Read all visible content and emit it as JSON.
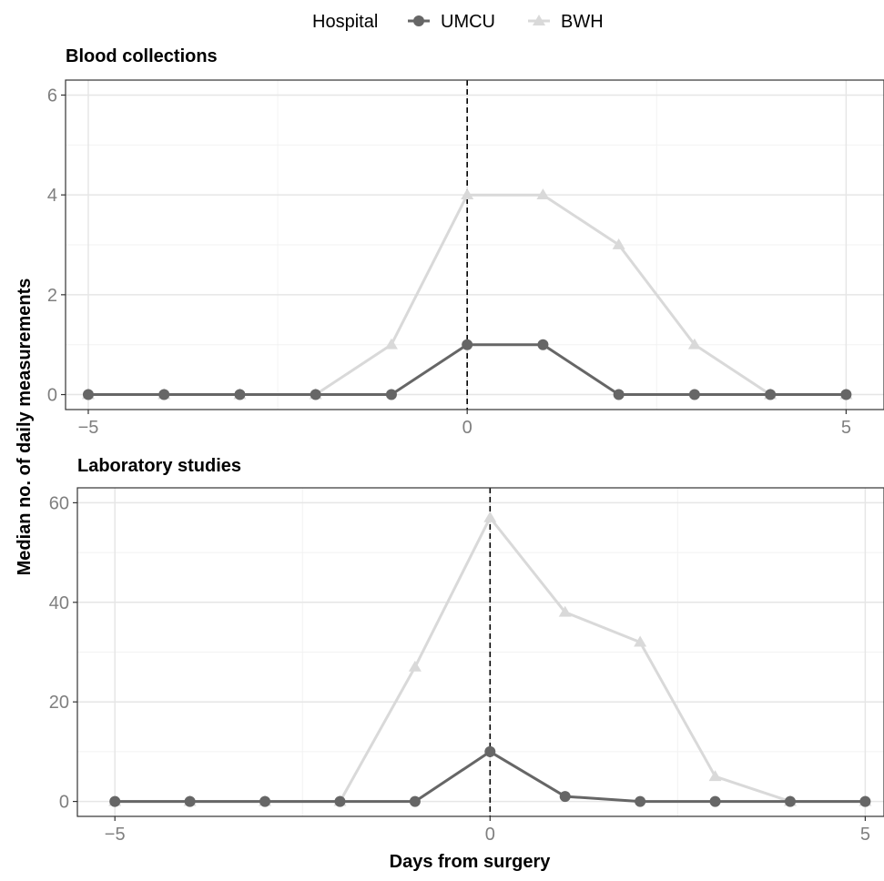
{
  "chart_data": {
    "type": "line",
    "legend": {
      "title": "Hospital",
      "position": "top",
      "entries": [
        "UMCU",
        "BWH"
      ]
    },
    "xlabel": "Days from surgery",
    "ylabel": "Median no. of daily measurements",
    "vline_x": 0,
    "grid": true,
    "colors": {
      "UMCU": "#666666",
      "BWH": "#d9d9d9"
    },
    "panels": [
      {
        "title": "Blood collections",
        "x": [
          -5,
          -4,
          -3,
          -2,
          -1,
          0,
          1,
          2,
          3,
          4,
          5
        ],
        "xlim": [
          -5.3,
          5.5
        ],
        "ylim": [
          -0.3,
          6.3
        ],
        "xticks": [
          -5,
          0,
          5
        ],
        "xtick_labels": [
          "−5",
          "0",
          "5"
        ],
        "yticks": [
          0,
          2,
          4,
          6
        ],
        "ytick_labels": [
          "0",
          "2",
          "4",
          "6"
        ],
        "series": [
          {
            "name": "UMCU",
            "values": [
              0,
              0,
              0,
              0,
              0,
              1,
              1,
              0,
              0,
              0,
              0
            ]
          },
          {
            "name": "BWH",
            "values": [
              0,
              0,
              0,
              0,
              1,
              4,
              4,
              3,
              1,
              0,
              0
            ]
          }
        ]
      },
      {
        "title": "Laboratory studies",
        "x": [
          -5,
          -4,
          -3,
          -2,
          -1,
          0,
          1,
          2,
          3,
          4,
          5
        ],
        "xlim": [
          -5.5,
          5.25
        ],
        "ylim": [
          -3,
          63
        ],
        "xticks": [
          -5,
          0,
          5
        ],
        "xtick_labels": [
          "−5",
          "0",
          "5"
        ],
        "yticks": [
          0,
          20,
          40,
          60
        ],
        "ytick_labels": [
          "0",
          "20",
          "40",
          "60"
        ],
        "series": [
          {
            "name": "UMCU",
            "values": [
              0,
              0,
              0,
              0,
              0,
              10,
              1,
              0,
              0,
              0,
              0
            ]
          },
          {
            "name": "BWH",
            "values": [
              0,
              0,
              0,
              0,
              27,
              57,
              38,
              32,
              5,
              0,
              0
            ]
          }
        ]
      }
    ]
  }
}
